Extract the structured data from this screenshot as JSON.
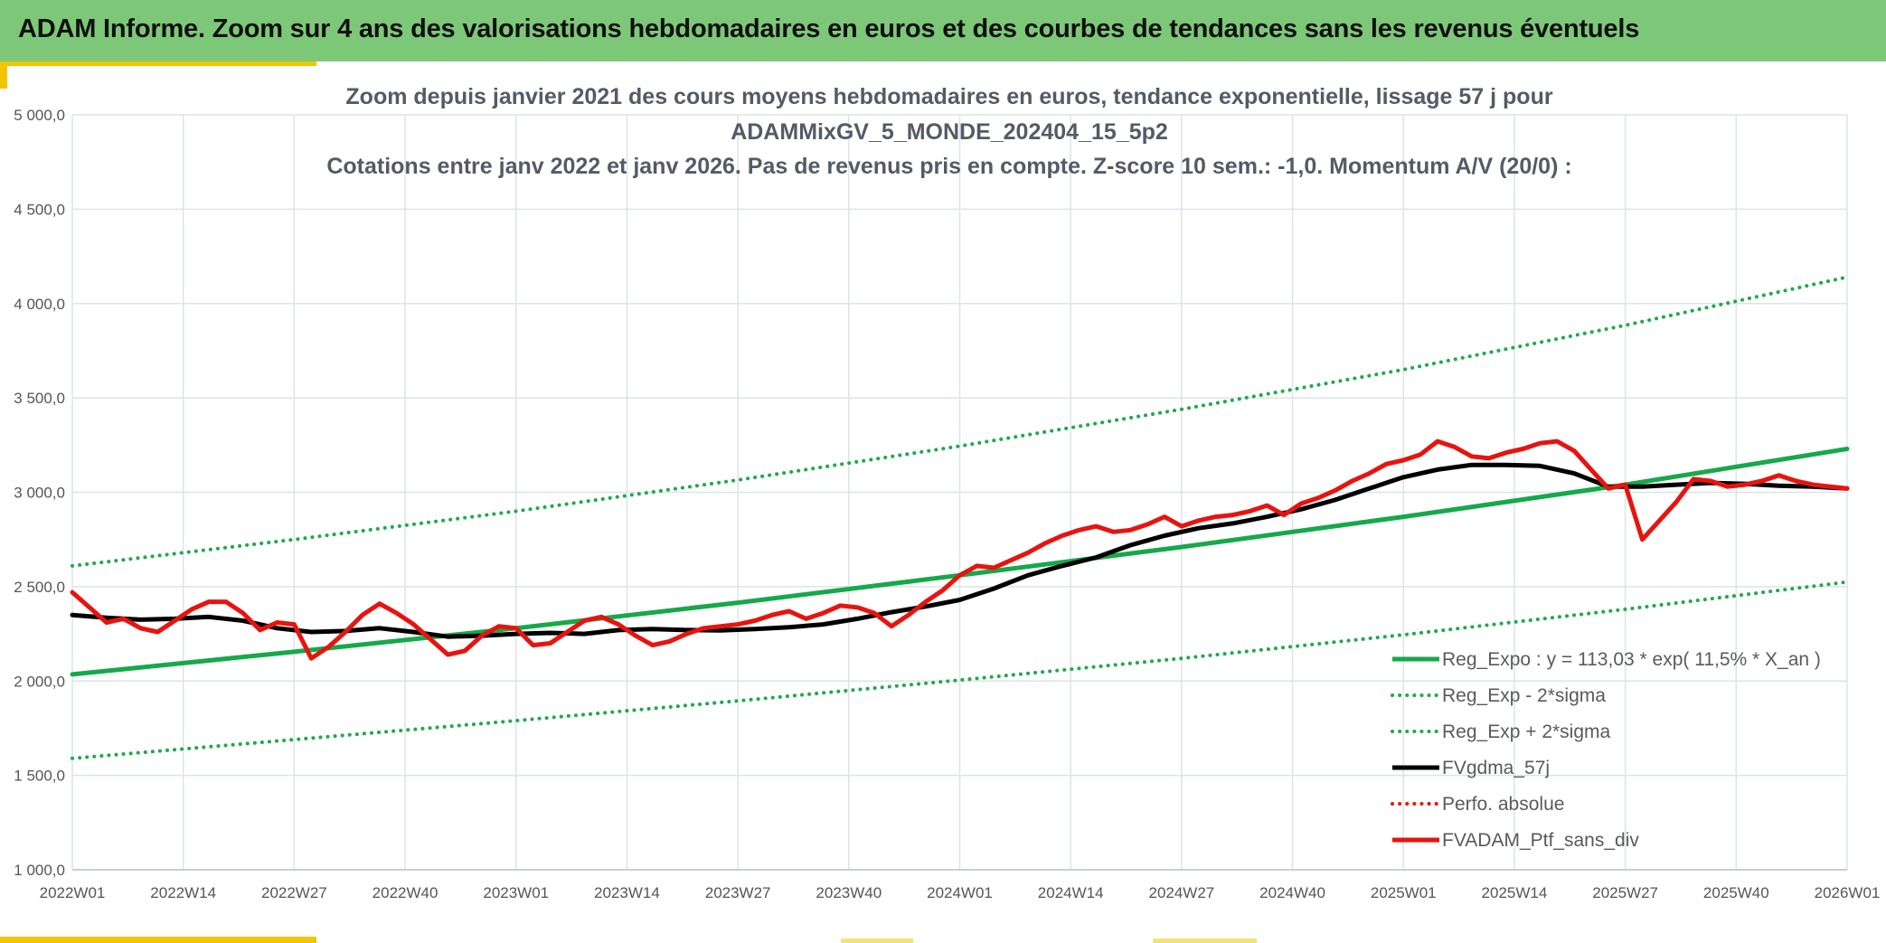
{
  "banner": {
    "title": "ADAM Informe. Zoom sur 4 ans des valorisations hebdomadaires en euros et des courbes de tendances sans les revenus éventuels"
  },
  "colors": {
    "banner_bg": "#7dc878",
    "accent": "#f2c500",
    "trend_green": "#16a94a",
    "band_green": "#1eaa4e",
    "gdma_black": "#000000",
    "portfolio_red": "#e8130f",
    "grid": "#dde3e8"
  },
  "chart_data": {
    "type": "line",
    "title_lines": [
      "Zoom depuis janvier 2021 des cours moyens hebdomadaires en euros, tendance exponentielle, lissage 57 j pour",
      "ADAMMixGV_5_MONDE_202404_15_5p2",
      "Cotations entre janv 2022 et janv 2026. Pas de revenus pris en compte. Z-score 10 sem.: -1,0. Momentum A/V (20/0) :"
    ],
    "x_tick_labels": [
      "2022W01",
      "2022W14",
      "2022W27",
      "2022W40",
      "2023W01",
      "2023W14",
      "2023W27",
      "2023W40",
      "2024W01",
      "2024W14",
      "2024W27",
      "2024W40",
      "2025W01",
      "2025W14",
      "2025W27",
      "2025W40",
      "2026W01"
    ],
    "x_unit": "week index (0 = 2022W01, 208 = 2026W01)",
    "xlim": [
      0,
      208
    ],
    "ylim": [
      1000,
      5000
    ],
    "y_ticks": [
      1000,
      1500,
      2000,
      2500,
      3000,
      3500,
      4000,
      4500,
      5000
    ],
    "y_tick_labels": [
      "1 000,0",
      "1 500,0",
      "2 000,0",
      "2 500,0",
      "3 000,0",
      "3 500,0",
      "4 000,0",
      "4 500,0",
      "5 000,0"
    ],
    "grid": true,
    "legend_position": "bottom-right",
    "series": [
      {
        "name": "Reg_Expo : y = 113,03 * exp( 11,5% *  X_an )",
        "style": "solid",
        "color": "#16a94a",
        "width": 5,
        "x": [
          0,
          26,
          52,
          78,
          104,
          130,
          156,
          182,
          208
        ],
        "y": [
          2035,
          2155,
          2280,
          2415,
          2560,
          2710,
          2870,
          3040,
          3230
        ]
      },
      {
        "name": "Reg_Exp - 2*sigma",
        "style": "dotted",
        "color": "#1eaa4e",
        "width": 4,
        "x": [
          0,
          26,
          52,
          78,
          104,
          130,
          156,
          182,
          208
        ],
        "y": [
          1590,
          1690,
          1790,
          1895,
          2005,
          2120,
          2245,
          2380,
          2525
        ]
      },
      {
        "name": "Reg_Exp + 2*sigma",
        "style": "dotted",
        "color": "#1eaa4e",
        "width": 4,
        "x": [
          0,
          26,
          52,
          78,
          104,
          130,
          156,
          182,
          208
        ],
        "y": [
          2610,
          2750,
          2900,
          3065,
          3245,
          3440,
          3650,
          3885,
          4140
        ]
      },
      {
        "name": "FVgdma_57j",
        "style": "solid",
        "color": "#000000",
        "width": 5,
        "x": [
          0,
          4,
          8,
          12,
          16,
          20,
          24,
          28,
          32,
          36,
          40,
          44,
          48,
          52,
          56,
          60,
          64,
          68,
          72,
          76,
          80,
          84,
          88,
          92,
          96,
          100,
          104,
          108,
          112,
          116,
          120,
          124,
          128,
          132,
          136,
          140,
          144,
          148,
          152,
          156,
          160,
          164,
          168,
          172,
          176,
          180,
          184,
          188,
          192,
          196,
          200,
          204,
          208
        ],
        "y": [
          2350,
          2335,
          2325,
          2330,
          2340,
          2320,
          2280,
          2260,
          2265,
          2280,
          2260,
          2235,
          2240,
          2250,
          2255,
          2250,
          2270,
          2275,
          2270,
          2268,
          2275,
          2285,
          2300,
          2330,
          2365,
          2395,
          2430,
          2490,
          2560,
          2610,
          2655,
          2720,
          2770,
          2810,
          2835,
          2870,
          2910,
          2960,
          3020,
          3080,
          3120,
          3145,
          3145,
          3140,
          3100,
          3030,
          3030,
          3040,
          3050,
          3045,
          3035,
          3030,
          3020
        ]
      },
      {
        "name": "Perfo. absolue",
        "style": "dotted",
        "color": "#e8130f",
        "width": 4,
        "x": [],
        "y": []
      },
      {
        "name": "FVADAM_Ptf_sans_div",
        "style": "solid",
        "color": "#e8130f",
        "width": 5,
        "x": [
          0,
          2,
          4,
          6,
          8,
          10,
          12,
          14,
          16,
          18,
          20,
          22,
          24,
          26,
          28,
          30,
          32,
          34,
          36,
          38,
          40,
          42,
          44,
          46,
          48,
          50,
          52,
          54,
          56,
          58,
          60,
          62,
          64,
          66,
          68,
          70,
          72,
          74,
          76,
          78,
          80,
          82,
          84,
          86,
          88,
          90,
          92,
          94,
          96,
          98,
          100,
          102,
          104,
          106,
          108,
          110,
          112,
          114,
          116,
          118,
          120,
          122,
          124,
          126,
          128,
          130,
          132,
          134,
          136,
          138,
          140,
          142,
          144,
          146,
          148,
          150,
          152,
          154,
          156,
          158,
          160,
          162,
          164,
          166,
          168,
          170,
          172,
          174,
          176,
          178,
          180,
          182,
          184,
          186,
          188,
          190,
          192,
          194,
          196,
          198,
          200,
          202,
          204,
          206,
          208
        ],
        "y": [
          2470,
          2390,
          2310,
          2330,
          2280,
          2260,
          2320,
          2380,
          2420,
          2420,
          2360,
          2270,
          2310,
          2300,
          2120,
          2180,
          2260,
          2350,
          2410,
          2360,
          2300,
          2220,
          2140,
          2160,
          2240,
          2290,
          2280,
          2190,
          2200,
          2260,
          2320,
          2340,
          2300,
          2240,
          2190,
          2210,
          2250,
          2280,
          2290,
          2300,
          2320,
          2350,
          2370,
          2330,
          2360,
          2400,
          2390,
          2360,
          2290,
          2350,
          2420,
          2480,
          2560,
          2610,
          2600,
          2640,
          2680,
          2730,
          2770,
          2800,
          2820,
          2790,
          2800,
          2830,
          2870,
          2820,
          2850,
          2870,
          2880,
          2900,
          2930,
          2880,
          2940,
          2970,
          3010,
          3060,
          3100,
          3150,
          3170,
          3200,
          3270,
          3240,
          3190,
          3180,
          3210,
          3230,
          3260,
          3270,
          3220,
          3120,
          3020,
          3040,
          2750,
          2850,
          2950,
          3070,
          3060,
          3030,
          3040,
          3060,
          3090,
          3060,
          3040,
          3030,
          3020
        ]
      }
    ]
  }
}
